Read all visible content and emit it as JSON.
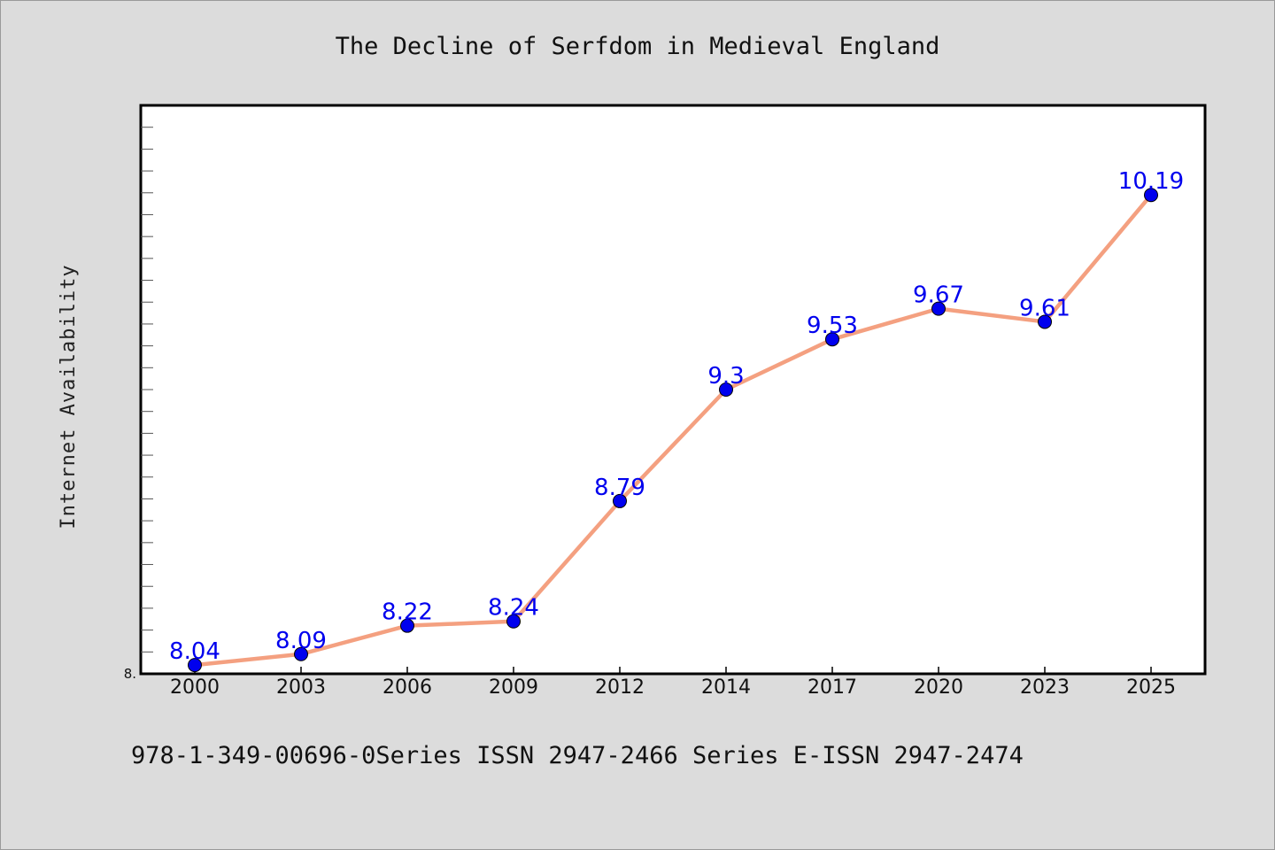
{
  "chart_data": {
    "type": "line",
    "title": "The Decline of Serfdom in Medieval England",
    "xlabel": "",
    "ylabel": "Internet Availability",
    "categories": [
      "2000",
      "2003",
      "2006",
      "2009",
      "2012",
      "2014",
      "2017",
      "2020",
      "2023",
      "2025"
    ],
    "series": [
      {
        "values": [
          8.04,
          8.09,
          8.22,
          8.24,
          8.79,
          9.3,
          9.53,
          9.67,
          9.61,
          10.19
        ]
      }
    ],
    "data_labels": [
      "8.04",
      "8.09",
      "8.22",
      "8.24",
      "8.79",
      "9.3",
      "9.53",
      "9.67",
      "9.61",
      "10.19"
    ],
    "y_tick_label": "8.",
    "ylim": [
      8.0,
      10.6
    ],
    "y_minor_tick_step": 0.1,
    "grid": false,
    "legend": "none",
    "colors": {
      "line": "#f4a080",
      "marker": "#0000ee",
      "data_label": "#0000ee",
      "background": "#dcdcdc",
      "plot_background": "#ffffff"
    }
  },
  "footer_text": "978-1-349-00696-0Series ISSN 2947-2466 Series E-ISSN 2947-2474"
}
